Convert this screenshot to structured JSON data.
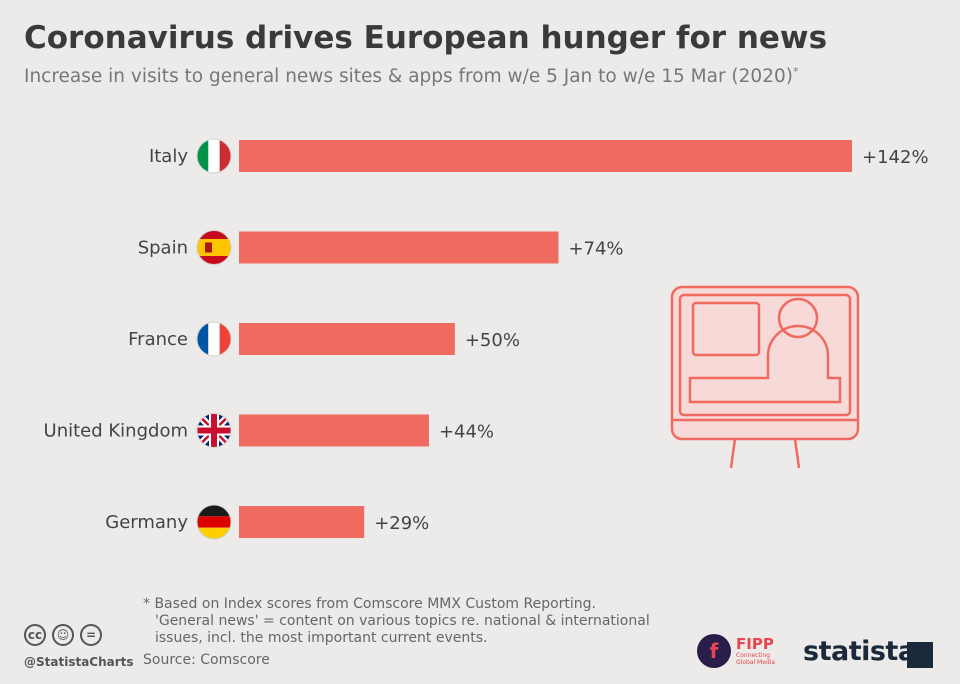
{
  "title": "Coronavirus drives European hunger for news",
  "subtitle": "Increase in visits to general news sites & apps from w/e 5 Jan to w/e 15 Mar (2020)",
  "subtitle_mark": "*",
  "chart_data": {
    "type": "bar",
    "orientation": "horizontal",
    "categories": [
      "Italy",
      "Spain",
      "France",
      "United Kingdom",
      "Germany"
    ],
    "values": [
      142,
      74,
      50,
      44,
      29
    ],
    "value_labels": [
      "+142%",
      "+74%",
      "+50%",
      "+44%",
      "+29%"
    ],
    "flags": [
      "italy-flag-icon",
      "spain-flag-icon",
      "france-flag-icon",
      "uk-flag-icon",
      "germany-flag-icon"
    ],
    "bar_color": "#ef6b60",
    "xlim": [
      0,
      142
    ],
    "grid": false,
    "decoration": "computer-monitor-person-icon"
  },
  "footnote": {
    "line1": "* Based on Index scores from Comscore MMX Custom Reporting.",
    "line2": "'General news' = content on various topics re. national & international",
    "line3": "issues, incl. the most important current events."
  },
  "source": "Source: Comscore",
  "handle": "@StatistaCharts",
  "fipp": {
    "name": "FIPP",
    "tag1": "Connecting",
    "tag2": "Global Media"
  },
  "brand": "statista",
  "colors": {
    "background": "#ecebea",
    "bar": "#ef6b60",
    "icon": "#ef6b60",
    "icon_fill": "#f7d9d7"
  }
}
